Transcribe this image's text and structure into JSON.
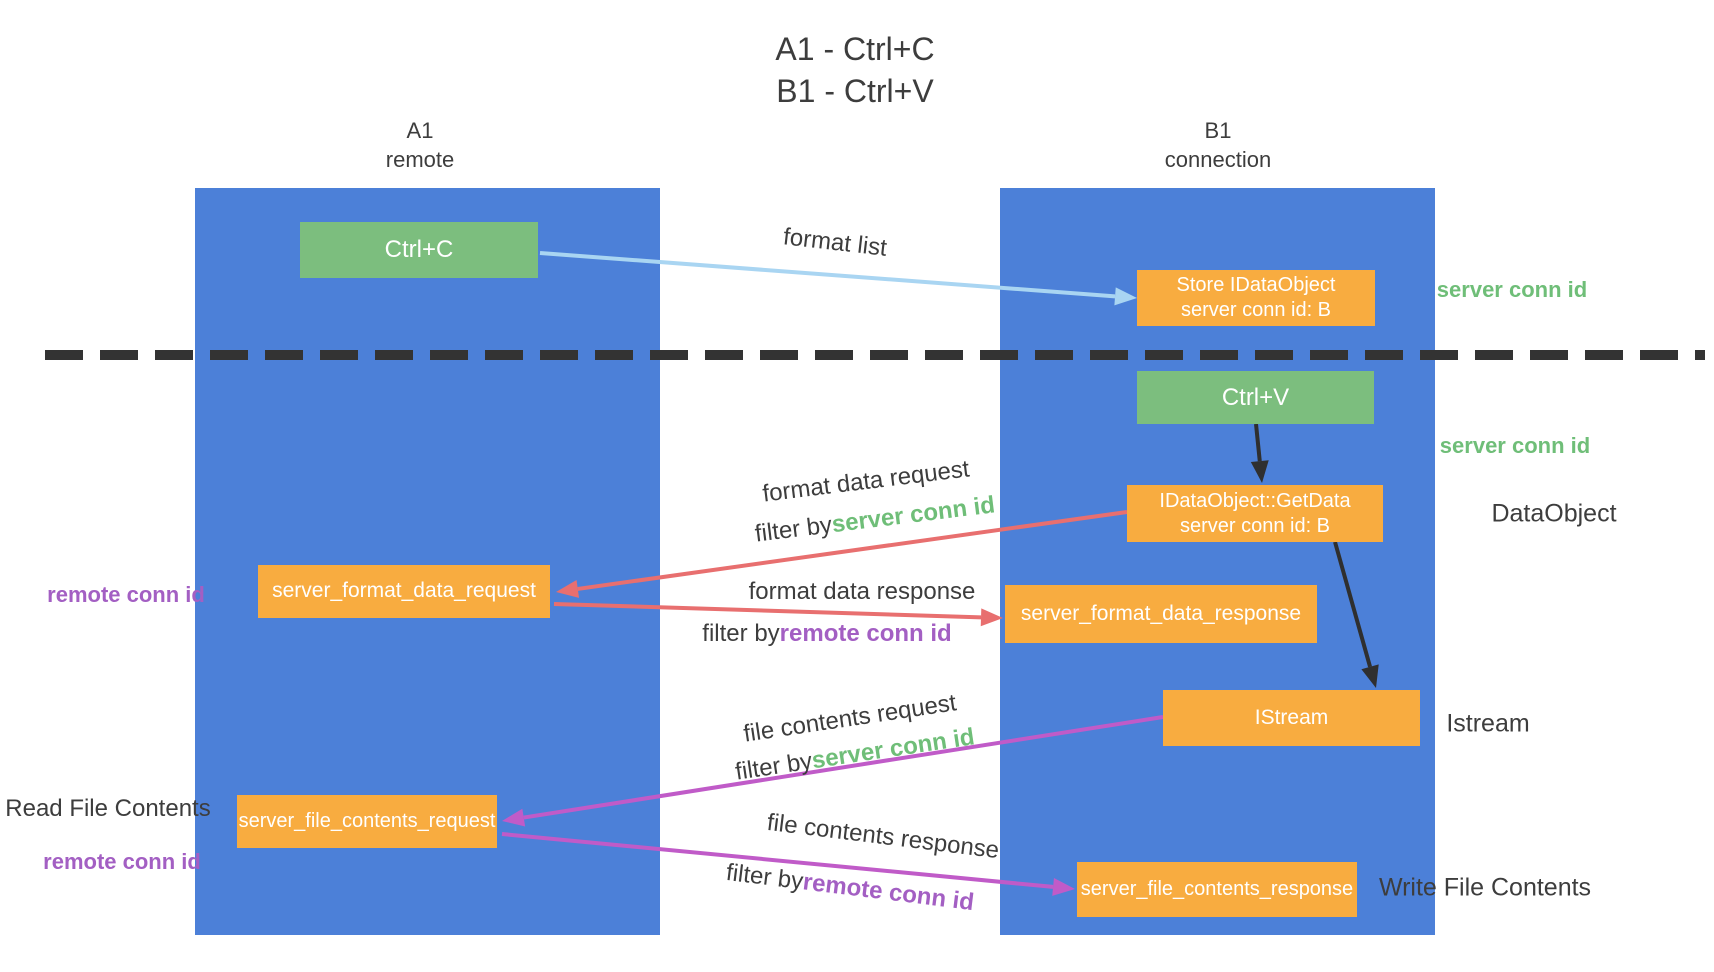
{
  "title": {
    "line1": "A1 - Ctrl+C",
    "line2": "B1 - Ctrl+V"
  },
  "lanes": {
    "a1": {
      "name": "A1",
      "role": "remote"
    },
    "b1": {
      "name": "B1",
      "role": "connection"
    }
  },
  "nodes": {
    "ctrl_c": {
      "label": "Ctrl+C"
    },
    "store_idataobject": {
      "line1": "Store IDataObject",
      "line2": "server conn id: B"
    },
    "ctrl_v": {
      "label": "Ctrl+V"
    },
    "getdata": {
      "line1": "IDataObject::GetData",
      "line2": "server conn id: B"
    },
    "server_format_data_request": {
      "label": "server_format_data_request"
    },
    "server_format_data_response": {
      "label": "server_format_data_response"
    },
    "istream": {
      "label": "IStream"
    },
    "server_file_contents_request": {
      "label": "server_file_contents_request"
    },
    "server_file_contents_response": {
      "label": "server_file_contents_response"
    }
  },
  "edge_labels": {
    "format_list": "format list",
    "format_data_request": "format data request",
    "format_data_response": "format data response",
    "file_contents_request": "file contents request",
    "file_contents_response": "file contents response",
    "filter_by": "filter by",
    "server_conn_id": "server conn id",
    "remote_conn_id": "remote conn id"
  },
  "side_labels": {
    "server_conn_id_store": "server conn id",
    "server_conn_id_dataobject": "server conn id",
    "dataobject": "DataObject",
    "istream": "Istream",
    "write_file_contents": "Write File Contents",
    "read_file_contents": "Read File Contents",
    "remote_conn_id_format": "remote conn id",
    "remote_conn_id_file": "remote conn id"
  },
  "colors": {
    "lane_blue": "#4C80D8",
    "box_green": "#7CBE7E",
    "box_orange": "#F8AC40",
    "arrow_lightblue": "#A9D5F2",
    "arrow_black": "#2F2F2F",
    "arrow_red": "#E86F6F",
    "arrow_purple": "#C05BC8",
    "text_green": "#6FBE78",
    "text_purple": "#A35FC3",
    "text_dark": "#3D3D3D",
    "divider": "#333333",
    "box_text": "#FFFFFF"
  }
}
